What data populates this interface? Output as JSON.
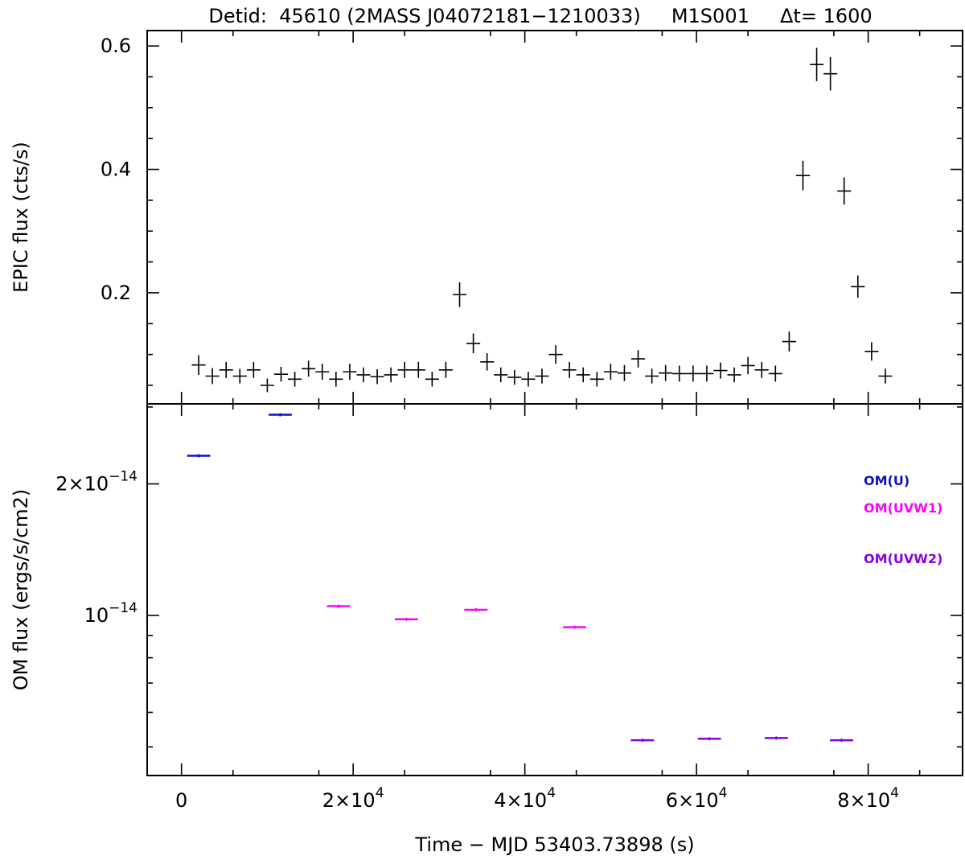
{
  "title": "Detid:  45610 (2MASS J04072181−1210033)     M1S001     Δt= 1600",
  "chart_data": [
    {
      "type": "scatter",
      "panel": "top",
      "ylabel": "EPIC flux (cts/s)",
      "xlim": [
        -4000,
        91000
      ],
      "ylim": [
        0.02,
        0.625
      ],
      "yticks": [
        0.2,
        0.4,
        0.6
      ],
      "ytick_labels": [
        "0.2",
        "0.4",
        "0.6"
      ],
      "color": "#000000",
      "x": [
        2000,
        3600,
        5200,
        6800,
        8400,
        10000,
        11600,
        13200,
        14800,
        16400,
        18000,
        19600,
        21200,
        22800,
        24400,
        26000,
        27600,
        29200,
        30800,
        32400,
        34000,
        35600,
        37200,
        38800,
        40400,
        42000,
        43600,
        45200,
        46800,
        48400,
        50000,
        51600,
        53200,
        54800,
        56400,
        58000,
        59600,
        61200,
        62800,
        64400,
        66000,
        67600,
        69200,
        70800,
        72400,
        74000,
        75600,
        77200,
        78800,
        80400,
        82000
      ],
      "y": [
        0.083,
        0.065,
        0.075,
        0.065,
        0.075,
        0.05,
        0.068,
        0.06,
        0.077,
        0.072,
        0.06,
        0.072,
        0.067,
        0.064,
        0.067,
        0.075,
        0.075,
        0.06,
        0.075,
        0.197,
        0.118,
        0.088,
        0.067,
        0.063,
        0.06,
        0.065,
        0.1,
        0.075,
        0.067,
        0.06,
        0.072,
        0.07,
        0.093,
        0.065,
        0.07,
        0.069,
        0.069,
        0.069,
        0.074,
        0.067,
        0.082,
        0.075,
        0.069,
        0.121,
        0.39,
        0.57,
        0.555,
        0.365,
        0.21,
        0.105,
        0.065
      ],
      "yerr": [
        0.016,
        0.013,
        0.013,
        0.012,
        0.013,
        0.011,
        0.012,
        0.012,
        0.013,
        0.013,
        0.012,
        0.013,
        0.012,
        0.012,
        0.012,
        0.013,
        0.013,
        0.012,
        0.013,
        0.02,
        0.016,
        0.014,
        0.012,
        0.012,
        0.012,
        0.012,
        0.015,
        0.013,
        0.012,
        0.012,
        0.013,
        0.013,
        0.014,
        0.012,
        0.013,
        0.013,
        0.013,
        0.013,
        0.013,
        0.012,
        0.014,
        0.013,
        0.013,
        0.016,
        0.024,
        0.027,
        0.027,
        0.022,
        0.018,
        0.015,
        0.012
      ]
    },
    {
      "type": "scatter",
      "panel": "bottom",
      "ylabel": "OM flux (ergs/s/cm2)",
      "xlabel": "Time − MJD 53403.73898 (s)",
      "xlim": [
        -4000,
        91000
      ],
      "ylim": [
        4.3e-15,
        3.05e-14
      ],
      "yscale": "log",
      "yticks": [
        1e-14,
        2e-14
      ],
      "ytick_labels": [
        {
          "mant": "",
          "exp": "−14"
        },
        {
          "mant": "2×",
          "exp": "−14"
        }
      ],
      "xticks": [
        0,
        20000,
        40000,
        60000,
        80000
      ],
      "xtick_labels": [
        {
          "mant": "0",
          "exp": ""
        },
        {
          "mant": "2×",
          "exp": "4"
        },
        {
          "mant": "4×",
          "exp": "4"
        },
        {
          "mant": "6×",
          "exp": "4"
        },
        {
          "mant": "8×",
          "exp": "4"
        }
      ],
      "series": [
        {
          "name": "OM(U)",
          "color": "#0a10c8",
          "x": [
            2000,
            11500
          ],
          "xerr": [
            1350,
            1350
          ],
          "y": [
            2.32e-14,
            2.88e-14
          ]
        },
        {
          "name": "OM(UVW1)",
          "color": "#ff00ff",
          "x": [
            18300,
            26200,
            34300,
            45800
          ],
          "xerr": [
            1350,
            1350,
            1350,
            1350
          ],
          "y": [
            1.05e-14,
            9.8e-15,
            1.03e-14,
            9.4e-15
          ]
        },
        {
          "name": "OM(UVW2)",
          "color": "#8a00e0",
          "x": [
            53700,
            61500,
            69300,
            76900
          ],
          "xerr": [
            1350,
            1350,
            1350,
            1350
          ],
          "y": [
            5.18e-15,
            5.22e-15,
            5.24e-15,
            5.18e-15
          ]
        }
      ]
    }
  ]
}
